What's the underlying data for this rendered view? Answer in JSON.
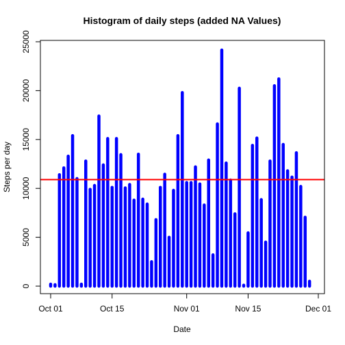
{
  "chart_data": {
    "type": "bar",
    "title": "Histogram of daily steps (added NA Values)",
    "xlabel": "Date",
    "ylabel": "Steps per day",
    "x_ticks": [
      "Oct 01",
      "Oct 15",
      "Nov 01",
      "Nov 15",
      "Dec 01"
    ],
    "y_ticks": [
      "0",
      "5000",
      "10000",
      "15000",
      "20000",
      "25000"
    ],
    "ylim": [
      0,
      25000
    ],
    "xlim": [
      "2012-10-01",
      "2012-12-01"
    ],
    "bar_color": "#0000ff",
    "reference_line": {
      "value": 10900,
      "color": "#ff0000"
    },
    "x": [
      "2012-10-01",
      "2012-10-02",
      "2012-10-03",
      "2012-10-04",
      "2012-10-05",
      "2012-10-06",
      "2012-10-07",
      "2012-10-08",
      "2012-10-09",
      "2012-10-10",
      "2012-10-11",
      "2012-10-12",
      "2012-10-13",
      "2012-10-14",
      "2012-10-15",
      "2012-10-16",
      "2012-10-17",
      "2012-10-18",
      "2012-10-19",
      "2012-10-20",
      "2012-10-21",
      "2012-10-22",
      "2012-10-23",
      "2012-10-24",
      "2012-10-25",
      "2012-10-26",
      "2012-10-27",
      "2012-10-28",
      "2012-10-29",
      "2012-10-30",
      "2012-10-31",
      "2012-11-01",
      "2012-11-02",
      "2012-11-03",
      "2012-11-04",
      "2012-11-05",
      "2012-11-06",
      "2012-11-07",
      "2012-11-08",
      "2012-11-09",
      "2012-11-10",
      "2012-11-11",
      "2012-11-12",
      "2012-11-13",
      "2012-11-14",
      "2012-11-15",
      "2012-11-16",
      "2012-11-17",
      "2012-11-18",
      "2012-11-19",
      "2012-11-20",
      "2012-11-21",
      "2012-11-22",
      "2012-11-23",
      "2012-11-24",
      "2012-11-25",
      "2012-11-26",
      "2012-11-27",
      "2012-11-28",
      "2012-11-29",
      "2012-11-30"
    ],
    "values": [
      200,
      150,
      11400,
      12100,
      13300,
      15400,
      11000,
      200,
      12800,
      9900,
      10300,
      17400,
      12400,
      15100,
      10100,
      15100,
      13450,
      10050,
      10400,
      8800,
      13500,
      8900,
      8400,
      2500,
      6800,
      10100,
      11450,
      5000,
      9800,
      15400,
      19800,
      10600,
      10600,
      12200,
      10450,
      8300,
      12900,
      3200,
      16600,
      24150,
      12600,
      10850,
      7400,
      20250,
      100,
      5450,
      14400,
      15150,
      8850,
      4500,
      12800,
      20500,
      21200,
      14500,
      11800,
      11150,
      13650,
      10200,
      7050,
      500,
      0
    ]
  }
}
